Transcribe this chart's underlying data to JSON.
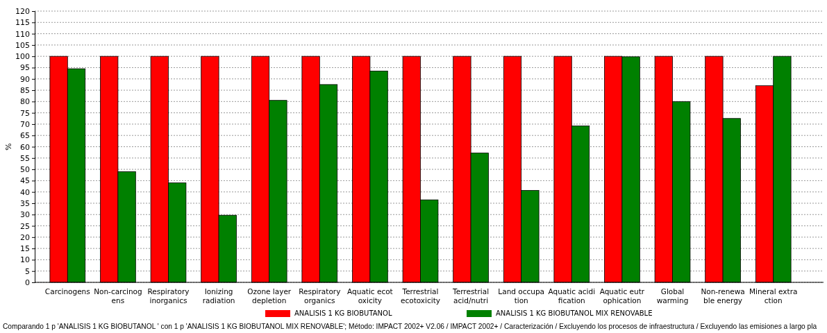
{
  "chart_data": {
    "type": "bar",
    "ylabel": "%",
    "categories": [
      "Carcinogens",
      "Non-carcinog\nens",
      "Respiratory\ninorganics",
      "Ionizing\nradiation",
      "Ozone layer\ndepletion",
      "Respiratory\norganics",
      "Aquatic ecot\noxicity",
      "Terrestrial\necotoxicity",
      "Terrestrial\nacid/nutri",
      "Land occupa\ntion",
      "Aquatic acidi\nfication",
      "Aquatic eutr\nophication",
      "Global\nwarming",
      "Non-renewa\nble energy",
      "Mineral extra\nction"
    ],
    "series": [
      {
        "name": "ANALISIS 1 KG BIOBUTANOL",
        "color": "#ff0000",
        "values": [
          100,
          100,
          100,
          100,
          100,
          100,
          100,
          100,
          100,
          100,
          100,
          100,
          100,
          100,
          87
        ]
      },
      {
        "name": "ANALISIS 1 KG BIOBUTANOL MIX RENOVABLE",
        "color": "#008000",
        "values": [
          94.5,
          49,
          44,
          29.7,
          80.5,
          87.5,
          93.5,
          36.5,
          57.2,
          40.7,
          69.2,
          99.8,
          80,
          72.5,
          100
        ]
      }
    ],
    "ylim": [
      0,
      120
    ],
    "yticks": [
      0,
      5,
      10,
      15,
      20,
      25,
      30,
      35,
      40,
      45,
      50,
      55,
      60,
      65,
      70,
      75,
      80,
      85,
      90,
      95,
      100,
      105,
      110,
      115,
      120
    ],
    "grid": "y",
    "legend": "bottom",
    "annotations": [
      "Comparando 1 p 'ANALISIS 1 KG BIOBUTANOL ' con 1 p 'ANALISIS 1 KG BIOBUTANOL MIX RENOVABLE';  Método: IMPACT 2002+ V2.06 /  IMPACT 2002+ / Caracterización / Excluyendo los procesos de infraestructura / Excluyendo las emisiones a largo pla"
    ]
  }
}
